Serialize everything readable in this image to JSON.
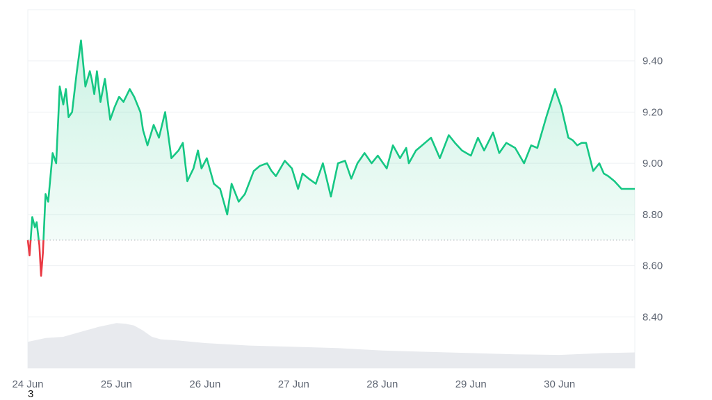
{
  "chart_data": {
    "type": "area",
    "title": "",
    "xlabel": "",
    "ylabel": "",
    "x_ticks": [
      "24 Jun",
      "25 Jun",
      "26 Jun",
      "27 Jun",
      "28 Jun",
      "29 Jun",
      "30 Jun"
    ],
    "y_ticks": [
      "8.40",
      "8.60",
      "8.80",
      "9.00",
      "9.20",
      "9.40"
    ],
    "ylim": [
      8.2,
      9.6
    ],
    "xlim_days": [
      0,
      6.85
    ],
    "baseline": 8.7,
    "grid": "horizontal",
    "colors": {
      "up": "#16c784",
      "down": "#ea3943",
      "volume": "#e8eaee",
      "grid": "#eef0f3",
      "baseline": "#9aa0a6"
    },
    "price_series": {
      "x_days": [
        0,
        0.02,
        0.05,
        0.08,
        0.1,
        0.13,
        0.15,
        0.17,
        0.2,
        0.23,
        0.28,
        0.32,
        0.36,
        0.4,
        0.43,
        0.46,
        0.5,
        0.55,
        0.6,
        0.65,
        0.7,
        0.72,
        0.75,
        0.78,
        0.82,
        0.87,
        0.93,
        0.98,
        1.03,
        1.08,
        1.15,
        1.2,
        1.27,
        1.3,
        1.35,
        1.42,
        1.48,
        1.55,
        1.62,
        1.7,
        1.75,
        1.8,
        1.87,
        1.92,
        1.96,
        2.02,
        2.1,
        2.17,
        2.25,
        2.3,
        2.38,
        2.45,
        2.55,
        2.62,
        2.7,
        2.75,
        2.8,
        2.9,
        2.98,
        3.05,
        3.1,
        3.17,
        3.25,
        3.33,
        3.42,
        3.5,
        3.58,
        3.65,
        3.72,
        3.8,
        3.88,
        3.95,
        4.05,
        4.12,
        4.2,
        4.27,
        4.3,
        4.38,
        4.45,
        4.55,
        4.65,
        4.75,
        4.82,
        4.9,
        5.0,
        5.08,
        5.15,
        5.25,
        5.32,
        5.4,
        5.5,
        5.6,
        5.68,
        5.75,
        5.85,
        5.95,
        6.02,
        6.1,
        6.15,
        6.2,
        6.25,
        6.3,
        6.38,
        6.45,
        6.5,
        6.55,
        6.62,
        6.7,
        6.78,
        6.85
      ],
      "values": [
        8.7,
        8.64,
        8.79,
        8.75,
        8.77,
        8.68,
        8.56,
        8.65,
        8.88,
        8.85,
        9.04,
        9.0,
        9.3,
        9.23,
        9.29,
        9.18,
        9.2,
        9.35,
        9.48,
        9.3,
        9.36,
        9.33,
        9.27,
        9.36,
        9.24,
        9.33,
        9.17,
        9.22,
        9.26,
        9.24,
        9.29,
        9.26,
        9.2,
        9.13,
        9.07,
        9.15,
        9.1,
        9.2,
        9.02,
        9.05,
        9.08,
        8.93,
        8.98,
        9.05,
        8.98,
        9.02,
        8.92,
        8.9,
        8.8,
        8.92,
        8.85,
        8.88,
        8.97,
        8.99,
        9.0,
        8.97,
        8.95,
        9.01,
        8.98,
        8.9,
        8.96,
        8.94,
        8.92,
        9.0,
        8.87,
        9.0,
        9.01,
        8.94,
        9.0,
        9.04,
        9.0,
        9.03,
        8.98,
        9.07,
        9.02,
        9.06,
        9.0,
        9.05,
        9.07,
        9.1,
        9.02,
        9.11,
        9.08,
        9.05,
        9.03,
        9.1,
        9.05,
        9.12,
        9.04,
        9.08,
        9.06,
        9.0,
        9.07,
        9.06,
        9.18,
        9.29,
        9.22,
        9.1,
        9.09,
        9.07,
        9.08,
        9.08,
        8.97,
        9.0,
        8.96,
        8.95,
        8.93,
        8.9,
        8.9,
        8.9
      ]
    },
    "volume_series": {
      "x_days": [
        0,
        0.2,
        0.4,
        0.6,
        0.8,
        1.0,
        1.1,
        1.2,
        1.3,
        1.4,
        1.5,
        1.7,
        2.0,
        2.5,
        3.0,
        3.5,
        4.0,
        4.5,
        5.0,
        5.5,
        6.0,
        6.5,
        6.85
      ],
      "values": [
        0.42,
        0.48,
        0.5,
        0.58,
        0.66,
        0.72,
        0.71,
        0.68,
        0.6,
        0.5,
        0.46,
        0.44,
        0.4,
        0.36,
        0.34,
        0.32,
        0.28,
        0.26,
        0.24,
        0.22,
        0.21,
        0.24,
        0.25
      ]
    }
  },
  "footnote": "3"
}
